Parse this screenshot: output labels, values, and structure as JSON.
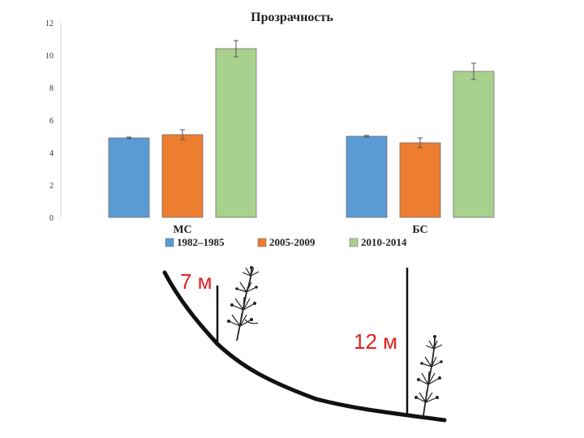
{
  "chart_data": {
    "type": "bar",
    "title": "Прозрачность",
    "categories": [
      "МС",
      "БС"
    ],
    "series": [
      {
        "name": "1982–1985",
        "color": "#5b9bd5",
        "values": [
          4.9,
          5.0
        ],
        "errors": [
          0.05,
          0.05
        ]
      },
      {
        "name": "2005-2009",
        "color": "#ed7d31",
        "values": [
          5.1,
          4.6
        ],
        "errors": [
          0.3,
          0.3
        ]
      },
      {
        "name": "2010-2014",
        "color": "#a9d18e",
        "values": [
          10.4,
          9.0
        ],
        "errors": [
          0.5,
          0.5
        ]
      }
    ],
    "ylim": [
      0,
      12
    ],
    "yticks": [
      "0",
      "2",
      "4",
      "6",
      "8",
      "10",
      "12"
    ],
    "legend_position": "bottom",
    "grid": false
  },
  "illustration": {
    "left_depth_label": "7 м",
    "right_depth_label": "12 м",
    "label_color": "#e02020",
    "plant_icon": "aquatic-plant-icon"
  }
}
